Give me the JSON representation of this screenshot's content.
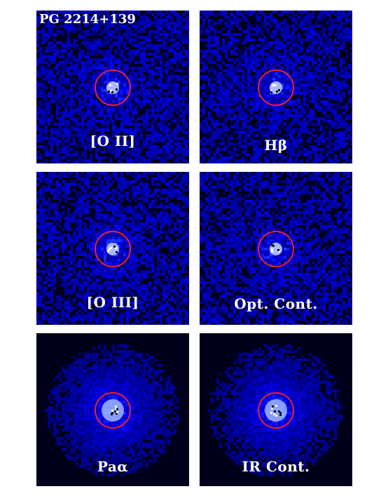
{
  "object_name": "PG 2214+139",
  "aperture_color": "#e8242c",
  "panels": [
    {
      "label": "[O II]",
      "style": "noise"
    },
    {
      "label": "Hβ",
      "style": "noise"
    },
    {
      "label": "[O III]",
      "style": "noise"
    },
    {
      "label": "Opt. Cont.",
      "style": "noise"
    },
    {
      "label": "Paα",
      "style": "halo"
    },
    {
      "label": "IR Cont.",
      "style": "halo"
    }
  ]
}
